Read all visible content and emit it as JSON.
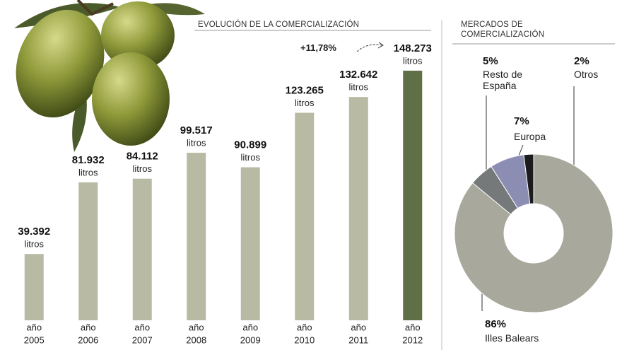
{
  "chart_data": [
    {
      "type": "bar",
      "subtitle": "EVOLUCIÓN DE LA COMERCIALIZACIÓN",
      "category_prefix": "año",
      "categories": [
        "2005",
        "2006",
        "2007",
        "2008",
        "2009",
        "2010",
        "2011",
        "2012"
      ],
      "values": [
        39392,
        81932,
        84112,
        99517,
        90899,
        123265,
        132642,
        148273
      ],
      "value_labels": [
        "39.392",
        "81.932",
        "84.112",
        "99.517",
        "90.899",
        "123.265",
        "132.642",
        "148.273"
      ],
      "value_unit": "litros",
      "colors": [
        "#b9baa3",
        "#b9baa3",
        "#b9baa3",
        "#b9baa3",
        "#b9baa3",
        "#b9baa3",
        "#b9baa3",
        "#5f6f46"
      ],
      "ylim": [
        0,
        160000
      ],
      "annotation": "+11,78%"
    },
    {
      "type": "pie",
      "title": "MERCADOS DE COMERCIALIZACIÓN",
      "categories": [
        "Illes Balears",
        "Resto de España",
        "Europa",
        "Otros"
      ],
      "values": [
        86,
        5,
        7,
        2
      ],
      "value_labels": [
        "86%",
        "5%",
        "7%",
        "2%"
      ],
      "colors": [
        "#a8a99c",
        "#76797a",
        "#8b8db3",
        "#1c1c1c"
      ]
    }
  ]
}
